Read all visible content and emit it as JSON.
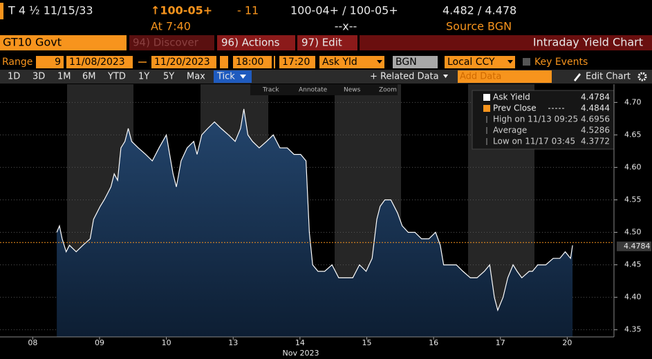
{
  "header": {
    "ticker": "T 4 ½ 11/15/33",
    "price": "↑100-05+",
    "change": "- 11",
    "bid_ask": "100-04+ / 100-05+",
    "yields": "4.482 / 4.478",
    "time": "At 7:40",
    "mid": "--x--",
    "source": "Source BGN"
  },
  "toolbar": {
    "security": "GT10 Govt",
    "discover": "94) Discover",
    "actions": "96) Actions",
    "edit": "97) Edit",
    "title": "Intraday Yield Chart"
  },
  "range": {
    "label": "Range",
    "count": "9",
    "start": "11/08/2023",
    "end": "11/20/2023",
    "from_time": "18:00",
    "to_time": "17:20",
    "field": "Ask Yld",
    "source": "BGN",
    "currency": "Local CCY",
    "events": "Key Events"
  },
  "periods": [
    "1D",
    "3D",
    "1M",
    "6M",
    "YTD",
    "1Y",
    "5Y",
    "Max"
  ],
  "menu": {
    "tick": "Tick",
    "related": "+ Related Data",
    "add": "Add Data",
    "edit_chart": "Edit Chart"
  },
  "tools": [
    "Track",
    "Annotate",
    "News",
    "Zoom"
  ],
  "chart_data": {
    "type": "line",
    "xlabel": "Nov 2023",
    "xlim": [
      -0.49,
      8.7
    ],
    "xticks": [
      {
        "value": 0,
        "label": "08"
      },
      {
        "value": 1,
        "label": "09"
      },
      {
        "value": 2,
        "label": "10"
      },
      {
        "value": 3,
        "label": "13"
      },
      {
        "value": 4,
        "label": "14"
      },
      {
        "value": 5,
        "label": "15"
      },
      {
        "value": 6,
        "label": "16"
      },
      {
        "value": 7,
        "label": "17"
      },
      {
        "value": 8,
        "label": "20"
      }
    ],
    "ylim": [
      4.339,
      4.728
    ],
    "yticks": [
      4.35,
      {
        "value": 4.4,
        "label": "4.40"
      },
      4.45,
      {
        "value": 4.5,
        "label": "4.50"
      },
      4.55,
      {
        "value": 4.6,
        "label": "4.60"
      },
      4.65,
      {
        "value": 4.7,
        "label": "4.70"
      }
    ],
    "grid": true,
    "series": [
      {
        "name": "Ask Yield",
        "color": "#ffffff",
        "last": 4.4784,
        "x": [
          0.36,
          0.4,
          0.44,
          0.5,
          0.55,
          0.65,
          0.75,
          0.86,
          0.91,
          0.96,
          1.01,
          1.07,
          1.12,
          1.17,
          1.22,
          1.27,
          1.32,
          1.38,
          1.43,
          1.48,
          1.58,
          1.69,
          1.79,
          1.89,
          2.0,
          2.05,
          2.1,
          2.15,
          2.22,
          2.31,
          2.41,
          2.46,
          2.53,
          2.62,
          2.72,
          2.82,
          2.93,
          3.03,
          3.11,
          3.16,
          3.22,
          3.29,
          3.39,
          3.5,
          3.6,
          3.7,
          3.81,
          3.91,
          4.01,
          4.09,
          4.14,
          4.19,
          4.27,
          4.37,
          4.48,
          4.58,
          4.68,
          4.79,
          4.89,
          4.99,
          5.08,
          5.15,
          5.2,
          5.27,
          5.36,
          5.46,
          5.53,
          5.62,
          5.72,
          5.82,
          5.93,
          6.03,
          6.1,
          6.15,
          6.24,
          6.34,
          6.44,
          6.55,
          6.65,
          6.76,
          6.84,
          6.91,
          6.96,
          7.04,
          7.11,
          7.19,
          7.25,
          7.32,
          7.43,
          7.48,
          7.56,
          7.68,
          7.79,
          7.89,
          7.97,
          8.05,
          8.08
        ],
        "values": [
          4.5,
          4.51,
          4.49,
          4.47,
          4.48,
          4.47,
          4.48,
          4.49,
          4.52,
          4.53,
          4.54,
          4.55,
          4.56,
          4.57,
          4.59,
          4.58,
          4.63,
          4.64,
          4.66,
          4.64,
          4.63,
          4.62,
          4.61,
          4.63,
          4.65,
          4.62,
          4.59,
          4.57,
          4.61,
          4.63,
          4.64,
          4.62,
          4.65,
          4.66,
          4.67,
          4.66,
          4.65,
          4.64,
          4.66,
          4.69,
          4.65,
          4.64,
          4.63,
          4.64,
          4.65,
          4.63,
          4.63,
          4.62,
          4.62,
          4.61,
          4.5,
          4.45,
          4.44,
          4.44,
          4.45,
          4.43,
          4.43,
          4.43,
          4.45,
          4.44,
          4.46,
          4.52,
          4.54,
          4.55,
          4.55,
          4.53,
          4.51,
          4.5,
          4.5,
          4.49,
          4.49,
          4.5,
          4.48,
          4.45,
          4.45,
          4.45,
          4.44,
          4.43,
          4.43,
          4.44,
          4.45,
          4.4,
          4.38,
          4.4,
          4.43,
          4.45,
          4.44,
          4.43,
          4.44,
          4.44,
          4.45,
          4.45,
          4.46,
          4.46,
          4.47,
          4.46,
          4.48
        ]
      }
    ],
    "reference": {
      "name": "Prev Close",
      "value": 4.4844,
      "color": "#f7941d"
    },
    "stats": [
      {
        "label": "High on 11/13 09:25",
        "value": 4.6956
      },
      {
        "label": "Average",
        "value": 4.5286
      },
      {
        "label": "Low on 11/17 03:45",
        "value": 4.3772
      }
    ]
  }
}
